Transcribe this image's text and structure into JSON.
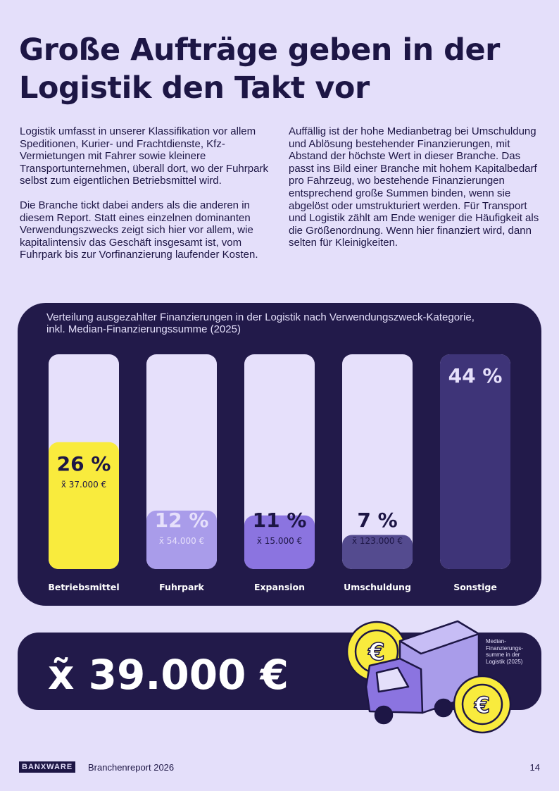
{
  "header": {
    "title": "Große Aufträge geben in der Logistik den Takt vor"
  },
  "left_column": [
    "Logistik umfasst in unserer Klassifikation vor allem Speditionen, Kurier- und Frachtdienste, Kfz-Vermietungen mit Fahrer sowie kleinere Transportunternehmen, überall dort, wo der Fuhrpark selbst zum eigentlichen Betriebsmittel wird.",
    "Die Branche tickt dabei anders als die anderen in diesem Report. Statt eines einzelnen dominanten Verwendungszwecks zeigt sich hier vor allem, wie kapitalintensiv das Geschäft insgesamt ist, vom Fuhrpark bis zur Vorfinanzierung laufender Kosten."
  ],
  "right_column": [
    "Auffällig ist der hohe Medianbetrag bei Umschuldung und Ablösung bestehender Finanzierungen, mit Abstand der höchste Wert in dieser Branche. Das passt ins Bild einer Branche mit hohem Kapitalbedarf pro Fahrzeug, wo bestehende Finanzierungen entsprechend große Summen binden, wenn sie abgelöst oder umstrukturiert werden. Für Transport und Logistik zählt am Ende weniger die Häufigkeit als die Größenordnung. Wenn hier finanziert wird, dann selten für Kleinigkeiten."
  ],
  "chart_data": {
    "type": "bar",
    "title": "Verteilung ausgezahlter Finanzierungen in der Logistik nach Verwendungszweck-Kategorie, inkl. Median-Finanzierungssumme (2025)",
    "categories": [
      "Betriebsmittel",
      "Fuhrpark",
      "Expansion",
      "Umschuldung",
      "Sonstige"
    ],
    "values": [
      26,
      12,
      11,
      7,
      44
    ],
    "value_labels": [
      "26 %",
      "12 %",
      "11 %",
      "7 %",
      "44 %"
    ],
    "median_labels": [
      "x̃ 37.000 €",
      "x̃ 54.000 €",
      "x̃ 15.000 €",
      "x̃ 123.000 €",
      null
    ],
    "colors": [
      "#f9eb3d",
      "#a99cea",
      "#8b74e0",
      "#544b8f",
      "#3e3478"
    ],
    "ylim": [
      0,
      44
    ]
  },
  "summary": {
    "value": "x̃ 39.000 €",
    "caption": "Median-Finanzierungs-summe in der Logistik (2025)"
  },
  "footer": {
    "logo": "BANXWARE",
    "report": "Branchenreport 2026",
    "page": "14"
  }
}
